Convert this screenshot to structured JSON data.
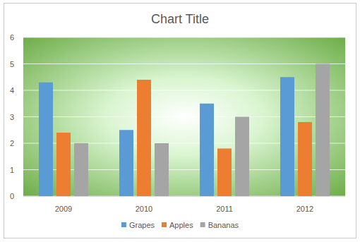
{
  "chart_data": {
    "type": "bar",
    "title": "Chart Title",
    "categories": [
      "2009",
      "2010",
      "2011",
      "2012"
    ],
    "series": [
      {
        "name": "Grapes",
        "color": "#5b9bd5",
        "values": [
          4.3,
          2.5,
          3.5,
          4.5
        ]
      },
      {
        "name": "Apples",
        "color": "#ed7d31",
        "values": [
          2.4,
          4.4,
          1.8,
          2.8
        ]
      },
      {
        "name": "Bananas",
        "color": "#a5a5a5",
        "values": [
          2.0,
          2.0,
          3.0,
          5.0
        ]
      }
    ],
    "ylim": [
      0,
      6
    ],
    "yticks": [
      0,
      1,
      2,
      3,
      4,
      5,
      6
    ],
    "grid": true,
    "legend": "bottom"
  }
}
